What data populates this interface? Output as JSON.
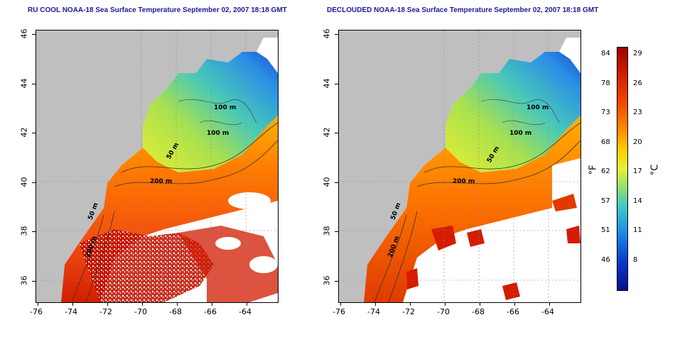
{
  "titles": {
    "left": "RU COOL NOAA-18 Sea Surface Temperature September 02, 2007 18:18 GMT",
    "right": "DECLOUDED NOAA-18 Sea Surface Temperature September 02, 2007 18:18 GMT"
  },
  "axes": {
    "x_ticks": [
      "-76",
      "-74",
      "-72",
      "-70",
      "-68",
      "-66",
      "-64"
    ],
    "y_ticks": [
      "46",
      "44",
      "42",
      "40",
      "38",
      "36"
    ]
  },
  "contour_labels": {
    "left": [
      "100 m",
      "100 m",
      "50 m",
      "200 m",
      "50 m",
      "200 m"
    ],
    "right": [
      "100 m",
      "100 m",
      "50 m",
      "200 m",
      "50 m",
      "200 m"
    ]
  },
  "colorbar": {
    "unit_f": "°F",
    "unit_c": "°C",
    "fahrenheit": [
      "84",
      "78",
      "73",
      "68",
      "62",
      "57",
      "51",
      "46"
    ],
    "celsius": [
      "29",
      "26",
      "23",
      "20",
      "17",
      "14",
      "11",
      "8"
    ]
  },
  "colors": {
    "land": "#bfbfbf",
    "title": "#1a1aa0"
  }
}
